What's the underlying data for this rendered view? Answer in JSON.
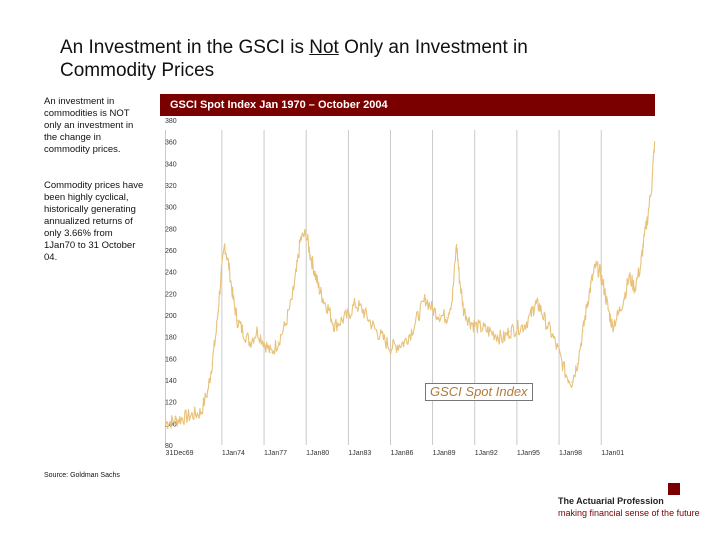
{
  "slide": {
    "title_pre": "An Investment in the GSCI is ",
    "title_underlined": "Not",
    "title_post": " Only an Investment in Commodity Prices",
    "side_text_1": "An investment in commodities is NOT only an investment in the change in commodity prices.",
    "side_text_2": "Commodity prices have been highly cyclical, historically generating annualized returns of only 3.66% from 1Jan70 to 31 October 04.",
    "source": "Source: Goldman Sachs"
  },
  "branding": {
    "title": "The Actuarial Profession",
    "tagline": "making financial sense of the future"
  },
  "colors": {
    "header_bg": "#7a0000",
    "series_line": "#e8c27a",
    "gridline": "#bdbdbd",
    "legend_text": "#b07a3a"
  },
  "chart_data": {
    "type": "line",
    "title": "GSCI Spot Index Jan 1970 – October 2004",
    "xlabel": "",
    "ylabel": "",
    "xlim": [
      1969.95,
      2004.83
    ],
    "ylim": [
      80,
      360
    ],
    "y_ticks": [
      "380",
      "360",
      "340",
      "320",
      "300",
      "280",
      "260",
      "240",
      "220",
      "200",
      "180",
      "160",
      "140",
      "120",
      "100",
      "80"
    ],
    "y_tick_values": [
      380,
      360,
      340,
      320,
      300,
      280,
      260,
      240,
      220,
      200,
      180,
      160,
      140,
      120,
      100,
      80
    ],
    "x_ticks": [
      "31Dec69",
      "1Jan74",
      "1Jan77",
      "1Jan80",
      "1Jan83",
      "1Jan86",
      "1Jan89",
      "1Jan92",
      "1Jan95",
      "1Jan98",
      "1Jan01"
    ],
    "x_tick_years": [
      1969.99,
      1974,
      1977,
      1980,
      1983,
      1986,
      1989,
      1992,
      1995,
      1998,
      2001
    ],
    "legend": "GSCI Spot Index",
    "series": [
      {
        "name": "GSCI Spot Index",
        "x": [
          1970,
          1970.5,
          1971,
          1971.5,
          1972,
          1972.5,
          1973,
          1973.3,
          1973.6,
          1973.9,
          1974.2,
          1974.5,
          1974.8,
          1975.1,
          1975.5,
          1976,
          1976.5,
          1977,
          1977.5,
          1978,
          1978.5,
          1979,
          1979.3,
          1979.6,
          1980,
          1980.3,
          1980.6,
          1980.9,
          1981.2,
          1981.6,
          1982,
          1982.5,
          1983,
          1983.5,
          1984,
          1984.5,
          1985,
          1985.5,
          1986,
          1986.5,
          1987,
          1987.5,
          1988,
          1988.5,
          1989,
          1989.5,
          1990,
          1990.4,
          1990.7,
          1990.9,
          1991.2,
          1991.6,
          1992,
          1992.5,
          1993,
          1993.5,
          1994,
          1994.5,
          1995,
          1995.5,
          1996,
          1996.3,
          1996.6,
          1997,
          1997.5,
          1998,
          1998.5,
          1998.9,
          1999.3,
          1999.7,
          2000,
          2000.3,
          2000.6,
          2000.9,
          2001.2,
          2001.5,
          2001.8,
          2002.2,
          2002.6,
          2003,
          2003.4,
          2003.8,
          2004,
          2004.3,
          2004.6,
          2004.8
        ],
        "values": [
          100,
          102,
          104,
          106,
          108,
          110,
          130,
          155,
          185,
          230,
          265,
          245,
          215,
          195,
          185,
          175,
          185,
          175,
          165,
          175,
          190,
          215,
          240,
          270,
          275,
          255,
          240,
          225,
          215,
          205,
          190,
          195,
          200,
          210,
          205,
          195,
          185,
          178,
          170,
          172,
          175,
          185,
          200,
          215,
          205,
          200,
          198,
          215,
          265,
          235,
          205,
          195,
          190,
          188,
          185,
          182,
          178,
          185,
          188,
          190,
          200,
          210,
          208,
          195,
          182,
          165,
          145,
          138,
          155,
          185,
          210,
          230,
          245,
          240,
          225,
          205,
          190,
          200,
          215,
          235,
          225,
          245,
          265,
          290,
          320,
          360
        ]
      }
    ]
  }
}
